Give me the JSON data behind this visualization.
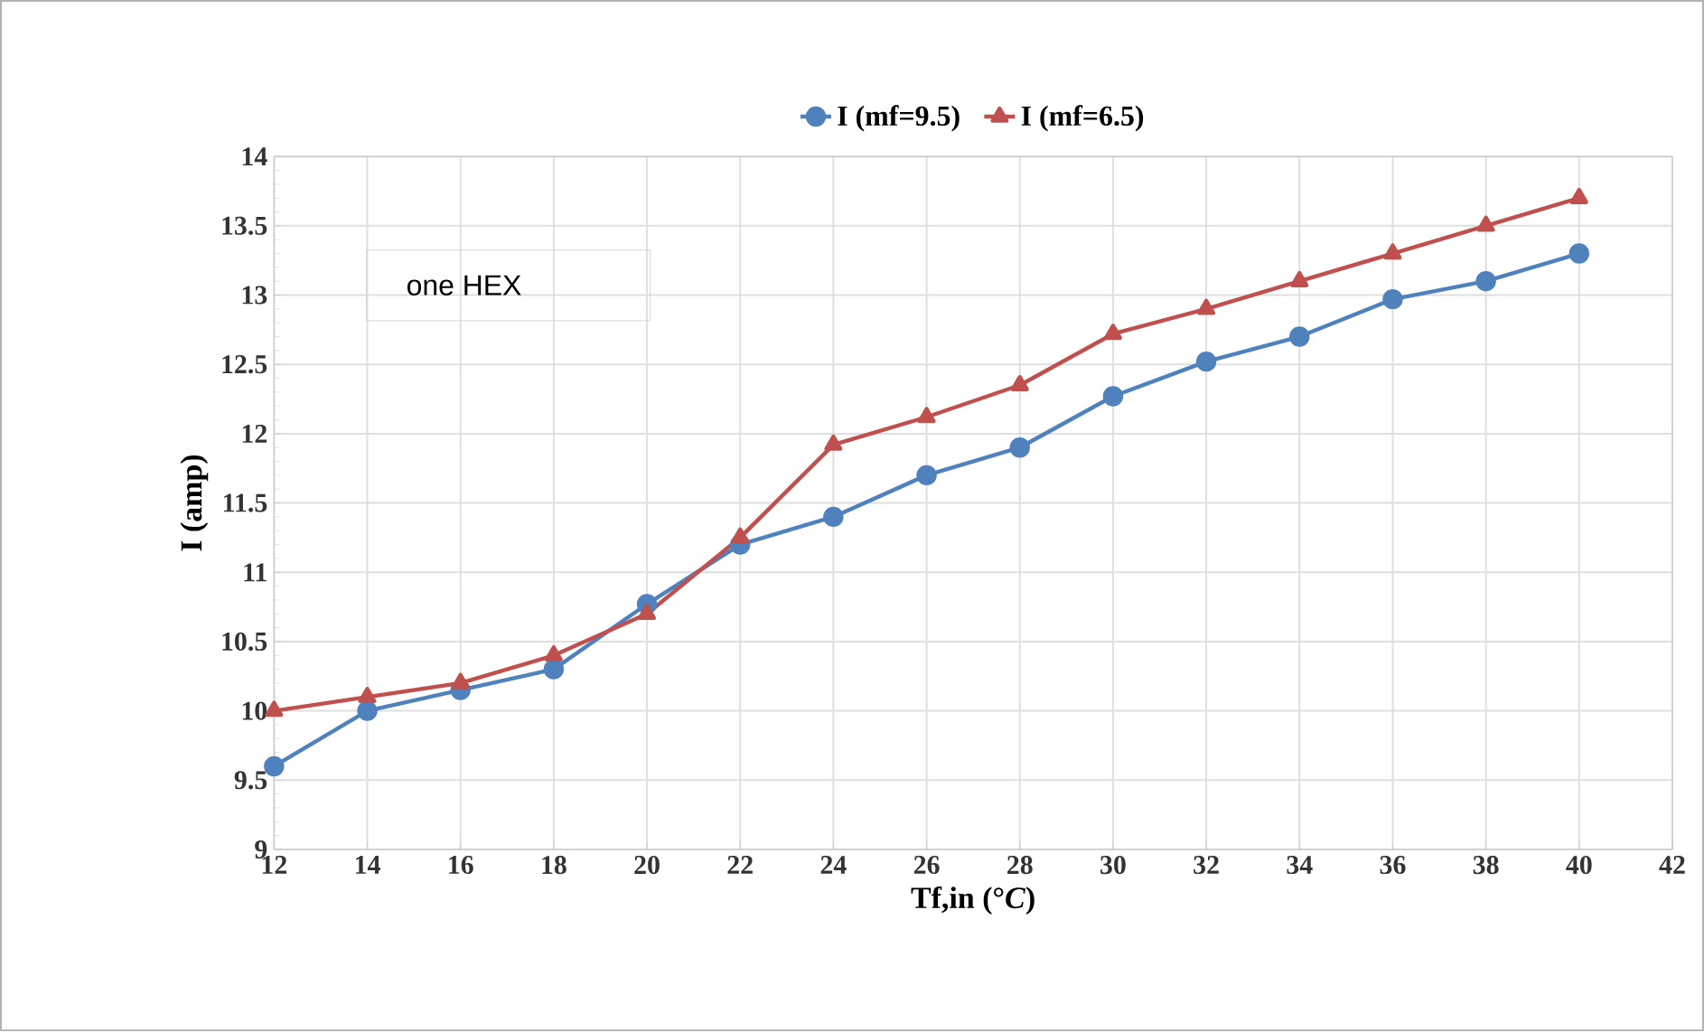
{
  "chart_data": {
    "type": "line",
    "xlabel": "Tf,in (°*C*)",
    "ylabel": "I (amp)",
    "annotations": [
      "one HEX"
    ],
    "x": [
      12,
      14,
      16,
      18,
      20,
      22,
      24,
      26,
      28,
      30,
      32,
      34,
      36,
      38,
      40
    ],
    "series": [
      {
        "name": "I (mf=9.5)",
        "color": "#4f81bd",
        "marker": "circle",
        "values": [
          9.6,
          10.0,
          10.15,
          10.3,
          10.77,
          11.2,
          11.4,
          11.7,
          11.9,
          12.27,
          12.52,
          12.7,
          12.97,
          13.1,
          13.3
        ]
      },
      {
        "name": "I (mf=6.5)",
        "color": "#c0504d",
        "marker": "triangle",
        "values": [
          10.0,
          10.1,
          10.2,
          10.4,
          10.7,
          11.25,
          11.92,
          12.12,
          12.35,
          12.72,
          12.9,
          13.1,
          13.3,
          13.5,
          13.7
        ]
      }
    ],
    "xlim": [
      12,
      42
    ],
    "xticks": [
      12,
      14,
      16,
      18,
      20,
      22,
      24,
      26,
      28,
      30,
      32,
      34,
      36,
      38,
      40,
      42
    ],
    "ylim": [
      9,
      14
    ],
    "yticks": [
      9,
      9.5,
      10,
      10.5,
      11,
      11.5,
      12,
      12.5,
      13,
      13.5,
      14
    ],
    "grid": true,
    "legend": "top",
    "line_style": "solid"
  }
}
